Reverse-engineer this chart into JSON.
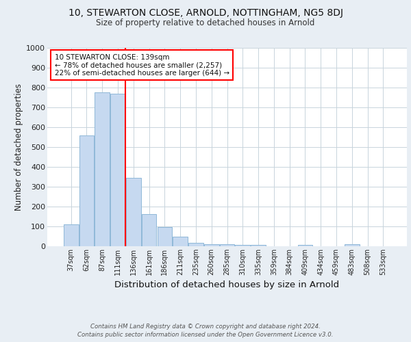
{
  "title1": "10, STEWARTON CLOSE, ARNOLD, NOTTINGHAM, NG5 8DJ",
  "title2": "Size of property relative to detached houses in Arnold",
  "xlabel": "Distribution of detached houses by size in Arnold",
  "ylabel": "Number of detached properties",
  "categories": [
    "37sqm",
    "62sqm",
    "87sqm",
    "111sqm",
    "136sqm",
    "161sqm",
    "186sqm",
    "211sqm",
    "235sqm",
    "260sqm",
    "285sqm",
    "310sqm",
    "335sqm",
    "359sqm",
    "384sqm",
    "409sqm",
    "434sqm",
    "459sqm",
    "483sqm",
    "508sqm",
    "533sqm"
  ],
  "values": [
    110,
    557,
    775,
    770,
    345,
    163,
    97,
    50,
    18,
    12,
    10,
    8,
    6,
    0,
    0,
    8,
    0,
    0,
    9,
    0,
    0
  ],
  "bar_color": "#c6d9f0",
  "bar_edge_color": "#8fb8d8",
  "vline_index": 4,
  "vline_color": "red",
  "annotation_line1": "10 STEWARTON CLOSE: 139sqm",
  "annotation_line2": "← 78% of detached houses are smaller (2,257)",
  "annotation_line3": "22% of semi-detached houses are larger (644) →",
  "annotation_box_edgecolor": "red",
  "footer1": "Contains HM Land Registry data © Crown copyright and database right 2024.",
  "footer2": "Contains public sector information licensed under the Open Government Licence v3.0.",
  "ylim": [
    0,
    1000
  ],
  "yticks": [
    0,
    100,
    200,
    300,
    400,
    500,
    600,
    700,
    800,
    900,
    1000
  ],
  "bg_color": "#e8eef4",
  "plot_bg_color": "#ffffff",
  "grid_color": "#c8d4dc"
}
